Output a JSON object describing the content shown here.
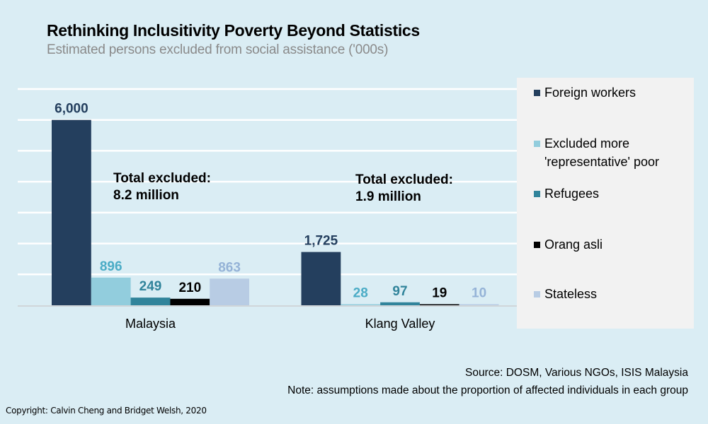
{
  "header": {
    "title": "Rethinking Inclusitivity Poverty Beyond Statistics",
    "subtitle": "Estimated persons excluded from social assistance ('000s)"
  },
  "annotations": [
    {
      "line1": "Total excluded:",
      "line2": "8.2 million"
    },
    {
      "line1": "Total excluded:",
      "line2": "1.9 million"
    }
  ],
  "footer": {
    "source": "Source: DOSM, Various NGOs, ISIS Malaysia",
    "note": "Note: assumptions made about the proportion of affected individuals in each group",
    "copyright": "Copyright: Calvin Cheng and Bridget Welsh, 2020"
  },
  "chart_data": {
    "type": "bar",
    "title": "Rethinking Inclusitivity Poverty Beyond Statistics",
    "subtitle": "Estimated persons excluded from social assistance ('000s)",
    "xlabel": "",
    "ylabel": "",
    "categories": [
      "Malaysia",
      "Klang Valley"
    ],
    "series": [
      {
        "name": "Foreign workers",
        "values": [
          6000,
          1725
        ],
        "labels": [
          "6,000",
          "1,725"
        ],
        "color": "#243f5e",
        "label_color": "#243f5e"
      },
      {
        "name": "Excluded more 'representative' poor",
        "values": [
          896,
          28
        ],
        "labels": [
          "896",
          "28"
        ],
        "color": "#92cddd",
        "label_color": "#4bacc6"
      },
      {
        "name": "Refugees",
        "values": [
          249,
          97
        ],
        "labels": [
          "249",
          "97"
        ],
        "color": "#31849b",
        "label_color": "#31849b"
      },
      {
        "name": "Orang asli",
        "values": [
          210,
          19
        ],
        "labels": [
          "210",
          "19"
        ],
        "color": "#000000",
        "label_color": "#000000"
      },
      {
        "name": "Stateless",
        "values": [
          863,
          10
        ],
        "labels": [
          "863",
          "10"
        ],
        "color": "#b8cce4",
        "label_color": "#95b3d7"
      }
    ],
    "ylim": [
      0,
      7000
    ],
    "y_gridlines": [
      1000,
      2000,
      3000,
      4000,
      5000,
      6000,
      7000
    ],
    "grid": true,
    "y_axis_tick_labels_shown": false,
    "legend_position": "right"
  }
}
